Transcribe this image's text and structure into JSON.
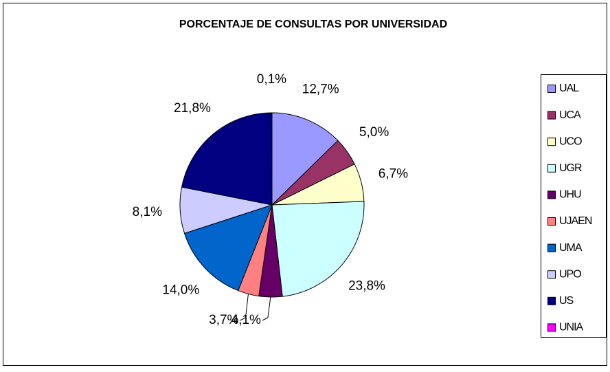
{
  "chart_data": {
    "type": "pie",
    "title": "PORCENTAJE DE CONSULTAS POR UNIVERSIDAD",
    "categories": [
      "UAL",
      "UCA",
      "UCO",
      "UGR",
      "UHU",
      "UJAEN",
      "UMA",
      "UPO",
      "US",
      "UNIA"
    ],
    "values": [
      12.7,
      5.0,
      6.7,
      23.8,
      4.1,
      3.7,
      14.0,
      8.1,
      21.8,
      0.1
    ],
    "value_labels": [
      "12,7%",
      "5,0%",
      "6,7%",
      "23,8%",
      "4,1%",
      "3,7%",
      "14,0%",
      "8,1%",
      "21,8%",
      "0,1%"
    ],
    "colors": [
      "#9999ff",
      "#993366",
      "#ffffcc",
      "#ccffff",
      "#660066",
      "#ff8080",
      "#0066cc",
      "#ccccff",
      "#000080",
      "#ff00ff"
    ],
    "legend": "right"
  }
}
